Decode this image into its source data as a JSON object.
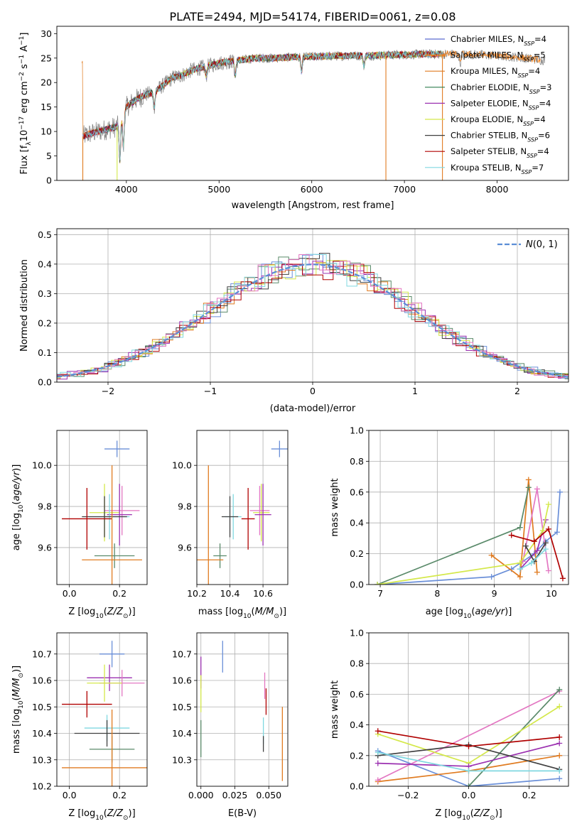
{
  "figure": {
    "title": "PLATE=2494, MJD=54174, FIBERID=0061, z=0.08"
  },
  "colors": {
    "Chabrier MILES": "#5b6bd0",
    "Salpeter MILES": "#ff7f0e",
    "Kroupa MILES": "#e07b20",
    "Chabrier ELODIE": "#2e7d4f",
    "Salpeter ELODIE": "#9b30b0",
    "Kroupa ELODIE": "#d4e84a",
    "Chabrier STELIB": "#404040",
    "Salpeter STELIB": "#b00000",
    "Kroupa STELIB": "#80d8e0",
    "pink": "#e377c2",
    "blue": "#6a8fd8",
    "green": "#5a8a6a"
  },
  "chart_data": [
    {
      "id": "spectrum",
      "type": "line",
      "title": "PLATE=2494, MJD=54174, FIBERID=0061, z=0.08",
      "xlabel": "wavelength [Angstrom, rest frame]",
      "ylabel": "Flux [f_λ 10^-17 erg cm^-2 s^-1 A^-1]",
      "xlim": [
        3250,
        8770
      ],
      "ylim": [
        0,
        31.5
      ],
      "xticks": [
        4000,
        5000,
        6000,
        7000,
        8000
      ],
      "yticks": [
        0,
        5,
        10,
        15,
        20,
        25,
        30
      ],
      "grid": false,
      "legend_position": "top-right",
      "legend": [
        {
          "label": "Chabrier MILES, N",
          "sub": "SSP",
          "tail": "=4"
        },
        {
          "label": "Salpeter MILES, N",
          "sub": "SSP",
          "tail": "=5"
        },
        {
          "label": "Kroupa MILES, N",
          "sub": "SSP",
          "tail": "=4"
        },
        {
          "label": "Chabrier ELODIE, N",
          "sub": "SSP",
          "tail": "=3"
        },
        {
          "label": "Salpeter ELODIE, N",
          "sub": "SSP",
          "tail": "=4"
        },
        {
          "label": "Kroupa ELODIE, N",
          "sub": "SSP",
          "tail": "=4"
        },
        {
          "label": "Chabrier STELIB, N",
          "sub": "SSP",
          "tail": "=6"
        },
        {
          "label": "Salpeter STELIB, N",
          "sub": "SSP",
          "tail": "=4"
        },
        {
          "label": "Kroupa STELIB, N",
          "sub": "SSP",
          "tail": "=7"
        }
      ],
      "series_colors": [
        "#5b6bd0",
        "#ff7f0e",
        "#e07b20",
        "#2e7d4f",
        "#9b30b0",
        "#d4e84a",
        "#404040",
        "#b00000",
        "#80d8e0"
      ],
      "continuum": {
        "x": [
          3530,
          3600,
          3700,
          3800,
          3900,
          3950,
          4000,
          4100,
          4200,
          4300,
          4400,
          4500,
          4600,
          4700,
          4800,
          4900,
          5000,
          5200,
          5400,
          5600,
          5800,
          6000,
          6200,
          6400,
          6600,
          6800,
          7000,
          7200,
          7400,
          7600,
          7800,
          8000,
          8200,
          8400,
          8520
        ],
        "y": [
          9,
          9.5,
          10,
          10.5,
          11,
          13,
          15,
          16.5,
          17.5,
          18,
          19.5,
          21,
          21.5,
          22.5,
          23,
          23.5,
          24,
          24.5,
          25,
          25,
          25.2,
          25.3,
          25.4,
          25.5,
          25.5,
          25.6,
          25.7,
          25.8,
          25.8,
          25.8,
          25.7,
          25.5,
          25.2,
          24.8,
          24.5
        ]
      },
      "features": [
        {
          "x": 3930,
          "depth": 8
        },
        {
          "x": 3968,
          "depth": 7
        },
        {
          "x": 4300,
          "depth": 3
        },
        {
          "x": 4861,
          "depth": 2
        },
        {
          "x": 5175,
          "depth": 3
        },
        {
          "x": 5890,
          "depth": 3
        },
        {
          "x": 6563,
          "depth": 2
        },
        {
          "x": 7600,
          "depth": 2
        }
      ]
    },
    {
      "id": "residuals",
      "type": "histogram",
      "xlabel": "(data-model)/error",
      "ylabel": "Normed distribution",
      "xlim": [
        -2.5,
        2.5
      ],
      "ylim": [
        0,
        0.52
      ],
      "xticks": [
        -2,
        -1,
        0,
        1,
        2
      ],
      "yticks": [
        0.0,
        0.1,
        0.2,
        0.3,
        0.4,
        0.5
      ],
      "grid": true,
      "legend_position": "top-right",
      "legend": [
        "N(0, 1)"
      ],
      "bin_width": 0.1,
      "reference_curve": "normal pdf mean 0 sd 1"
    },
    {
      "id": "age-vs-Z",
      "type": "scatter",
      "xlabel": "Z [log10(Z/Z⊙)]",
      "ylabel": "age [log10(age/yr)]",
      "xlim": [
        -0.05,
        0.31
      ],
      "ylim": [
        9.42,
        10.17
      ],
      "xticks": [
        0.0,
        0.2
      ],
      "yticks": [
        9.6,
        9.8,
        10.0
      ],
      "grid": true,
      "points": [
        {
          "color": "#6a8fd8",
          "x": 0.19,
          "y": 10.08,
          "xerr": 0.05,
          "yerr": 0.04
        },
        {
          "color": "#d4e84a",
          "x": 0.14,
          "y": 9.77,
          "xerr": 0.06,
          "yerr": 0.14
        },
        {
          "color": "#e377c2",
          "x": 0.21,
          "y": 9.78,
          "xerr": 0.07,
          "yerr": 0.12
        },
        {
          "color": "#9b30b0",
          "x": 0.2,
          "y": 9.76,
          "xerr": 0.05,
          "yerr": 0.15
        },
        {
          "color": "#80d8e0",
          "x": 0.16,
          "y": 9.75,
          "xerr": 0.08,
          "yerr": 0.11
        },
        {
          "color": "#404040",
          "x": 0.14,
          "y": 9.75,
          "xerr": 0.09,
          "yerr": 0.1
        },
        {
          "color": "#b00000",
          "x": 0.07,
          "y": 9.74,
          "xerr": 0.1,
          "yerr": 0.15
        },
        {
          "color": "#5a8a6a",
          "x": 0.18,
          "y": 9.56,
          "xerr": 0.08,
          "yerr": 0.06
        },
        {
          "color": "#e07b20",
          "x": 0.17,
          "y": 9.54,
          "xerr": 0.12,
          "yerr": 0.46
        }
      ]
    },
    {
      "id": "age-vs-mass",
      "type": "scatter",
      "xlabel": "mass [log10(M/M⊙)]",
      "ylabel": "",
      "xlim": [
        10.2,
        10.75
      ],
      "ylim": [
        9.42,
        10.17
      ],
      "xticks": [
        10.2,
        10.4,
        10.6
      ],
      "yticks": [
        9.6,
        9.8,
        10.0
      ],
      "grid": true,
      "points": [
        {
          "color": "#6a8fd8",
          "x": 10.7,
          "y": 10.08,
          "xerr": 0.05,
          "yerr": 0.04
        },
        {
          "color": "#d4e84a",
          "x": 10.59,
          "y": 9.77,
          "xerr": 0.05,
          "yerr": 0.14
        },
        {
          "color": "#e377c2",
          "x": 10.58,
          "y": 9.78,
          "xerr": 0.06,
          "yerr": 0.12
        },
        {
          "color": "#9b30b0",
          "x": 10.6,
          "y": 9.76,
          "xerr": 0.05,
          "yerr": 0.15
        },
        {
          "color": "#80d8e0",
          "x": 10.42,
          "y": 9.75,
          "xerr": 0.05,
          "yerr": 0.11
        },
        {
          "color": "#404040",
          "x": 10.4,
          "y": 9.75,
          "xerr": 0.05,
          "yerr": 0.1
        },
        {
          "color": "#b00000",
          "x": 10.51,
          "y": 9.74,
          "xerr": 0.04,
          "yerr": 0.15
        },
        {
          "color": "#5a8a6a",
          "x": 10.34,
          "y": 9.56,
          "xerr": 0.04,
          "yerr": 0.06
        },
        {
          "color": "#e07b20",
          "x": 10.27,
          "y": 9.54,
          "xerr": 0.09,
          "yerr": 0.46
        }
      ]
    },
    {
      "id": "weight-vs-age",
      "type": "line",
      "xlabel": "age [log10(age/yr)]",
      "ylabel": "mass weight",
      "xlim": [
        6.8,
        10.3
      ],
      "ylim": [
        0,
        1.0
      ],
      "xticks": [
        7,
        8,
        9,
        10
      ],
      "yticks": [
        0.0,
        0.2,
        0.4,
        0.6,
        0.8,
        1.0
      ],
      "grid": true,
      "series": [
        {
          "color": "#6a8fd8",
          "x": [
            6.95,
            8.95,
            9.3,
            9.7,
            9.9,
            10.1,
            10.15
          ],
          "y": [
            0.0,
            0.05,
            0.1,
            0.2,
            0.28,
            0.34,
            0.6
          ]
        },
        {
          "color": "#e07b20",
          "x": [
            8.95,
            9.45,
            9.6,
            9.75
          ],
          "y": [
            0.19,
            0.05,
            0.68,
            0.08
          ]
        },
        {
          "color": "#5a8a6a",
          "x": [
            6.95,
            9.45,
            9.6
          ],
          "y": [
            0.0,
            0.37,
            0.63
          ]
        },
        {
          "color": "#e377c2",
          "x": [
            9.5,
            9.75,
            9.95
          ],
          "y": [
            0.15,
            0.62,
            0.09
          ]
        },
        {
          "color": "#9b30b0",
          "x": [
            9.45,
            9.75,
            9.9
          ],
          "y": [
            0.1,
            0.22,
            0.42
          ]
        },
        {
          "color": "#d4e84a",
          "x": [
            6.95,
            9.45,
            9.85,
            9.95
          ],
          "y": [
            0.0,
            0.14,
            0.35,
            0.52
          ]
        },
        {
          "color": "#404040",
          "x": [
            9.55,
            9.7,
            9.9
          ],
          "y": [
            0.25,
            0.15,
            0.27
          ]
        },
        {
          "color": "#b00000",
          "x": [
            9.3,
            9.7,
            9.95,
            10.2
          ],
          "y": [
            0.32,
            0.28,
            0.36,
            0.04
          ]
        },
        {
          "color": "#80d8e0",
          "x": [
            9.45,
            9.65,
            9.9
          ],
          "y": [
            0.1,
            0.14,
            0.23
          ]
        }
      ]
    },
    {
      "id": "mass-vs-Z",
      "type": "scatter",
      "xlabel": "Z [log10(Z/Z⊙)]",
      "ylabel": "mass [log10(M/M⊙)]",
      "xlim": [
        -0.05,
        0.31
      ],
      "ylim": [
        10.2,
        10.78
      ],
      "xticks": [
        0.0,
        0.2
      ],
      "yticks": [
        10.2,
        10.3,
        10.4,
        10.5,
        10.6,
        10.7
      ],
      "grid": true,
      "points": [
        {
          "color": "#6a8fd8",
          "x": 0.17,
          "y": 10.7,
          "xerr": 0.05,
          "yerr": 0.05
        },
        {
          "color": "#9b30b0",
          "x": 0.16,
          "y": 10.61,
          "xerr": 0.09,
          "yerr": 0.05
        },
        {
          "color": "#e377c2",
          "x": 0.21,
          "y": 10.59,
          "xerr": 0.09,
          "yerr": 0.05
        },
        {
          "color": "#d4e84a",
          "x": 0.14,
          "y": 10.59,
          "xerr": 0.07,
          "yerr": 0.07
        },
        {
          "color": "#b00000",
          "x": 0.07,
          "y": 10.51,
          "xerr": 0.1,
          "yerr": 0.05
        },
        {
          "color": "#80d8e0",
          "x": 0.15,
          "y": 10.42,
          "xerr": 0.09,
          "yerr": 0.05
        },
        {
          "color": "#404040",
          "x": 0.15,
          "y": 10.4,
          "xerr": 0.13,
          "yerr": 0.05
        },
        {
          "color": "#5a8a6a",
          "x": 0.17,
          "y": 10.34,
          "xerr": 0.09,
          "yerr": 0.05
        },
        {
          "color": "#e07b20",
          "x": 0.17,
          "y": 10.27,
          "xerr": 0.2,
          "yerr": 0.22
        }
      ]
    },
    {
      "id": "mass-vs-ebv",
      "type": "scatter",
      "xlabel": "E(B-V)",
      "ylabel": "",
      "xlim": [
        -0.003,
        0.064
      ],
      "ylim": [
        10.2,
        10.78
      ],
      "xticks": [
        0.0,
        0.025,
        0.05
      ],
      "yticks": [
        10.3,
        10.4,
        10.5,
        10.6,
        10.7
      ],
      "grid": true,
      "points": [
        {
          "color": "#6a8fd8",
          "x": 0.016,
          "y": 10.69,
          "xerr": 0.0,
          "yerr": 0.06
        },
        {
          "color": "#9b30b0",
          "x": 0.0,
          "y": 10.63,
          "xerr": 0.0,
          "yerr": 0.06
        },
        {
          "color": "#e377c2",
          "x": 0.047,
          "y": 10.58,
          "xerr": 0.0,
          "yerr": 0.05
        },
        {
          "color": "#d4e84a",
          "x": 0.0,
          "y": 10.55,
          "xerr": 0.0,
          "yerr": 0.07
        },
        {
          "color": "#b00000",
          "x": 0.048,
          "y": 10.52,
          "xerr": 0.0,
          "yerr": 0.05
        },
        {
          "color": "#80d8e0",
          "x": 0.046,
          "y": 10.41,
          "xerr": 0.0,
          "yerr": 0.05
        },
        {
          "color": "#5a8a6a",
          "x": 0.0,
          "y": 10.38,
          "xerr": 0.0,
          "yerr": 0.07
        },
        {
          "color": "#404040",
          "x": 0.046,
          "y": 10.36,
          "xerr": 0.0,
          "yerr": 0.03
        },
        {
          "color": "#e07b20",
          "x": 0.06,
          "y": 10.36,
          "xerr": 0.0,
          "yerr": 0.14
        }
      ]
    },
    {
      "id": "weight-vs-Z",
      "type": "line",
      "xlabel": "Z [log10(Z/Z⊙)]",
      "ylabel": "mass weight",
      "xlim": [
        -0.33,
        0.33
      ],
      "ylim": [
        0,
        1.0
      ],
      "xticks": [
        -0.2,
        0.0,
        0.2
      ],
      "yticks": [
        0.0,
        0.2,
        0.4,
        0.6,
        0.8,
        1.0
      ],
      "grid": true,
      "series": [
        {
          "color": "#6a8fd8",
          "x": [
            -0.3,
            0.0,
            0.3
          ],
          "y": [
            0.23,
            0.0,
            0.05
          ]
        },
        {
          "color": "#e07b20",
          "x": [
            -0.3,
            0.0,
            0.3
          ],
          "y": [
            0.03,
            0.1,
            0.2
          ]
        },
        {
          "color": "#e377c2",
          "x": [
            -0.3,
            0.3
          ],
          "y": [
            0.04,
            0.62
          ]
        },
        {
          "color": "#5a8a6a",
          "x": [
            0.0,
            0.3
          ],
          "y": [
            0.0,
            0.63
          ]
        },
        {
          "color": "#d4e84a",
          "x": [
            -0.3,
            0.0,
            0.3
          ],
          "y": [
            0.34,
            0.15,
            0.52
          ]
        },
        {
          "color": "#9b30b0",
          "x": [
            -0.3,
            0.0,
            0.3
          ],
          "y": [
            0.15,
            0.13,
            0.28
          ]
        },
        {
          "color": "#404040",
          "x": [
            -0.3,
            0.0,
            0.3
          ],
          "y": [
            0.2,
            0.27,
            0.11
          ]
        },
        {
          "color": "#b00000",
          "x": [
            -0.3,
            0.0,
            0.3
          ],
          "y": [
            0.36,
            0.26,
            0.32
          ]
        },
        {
          "color": "#80d8e0",
          "x": [
            -0.3,
            0.0,
            0.3
          ],
          "y": [
            0.22,
            0.1,
            0.1
          ]
        }
      ]
    }
  ]
}
